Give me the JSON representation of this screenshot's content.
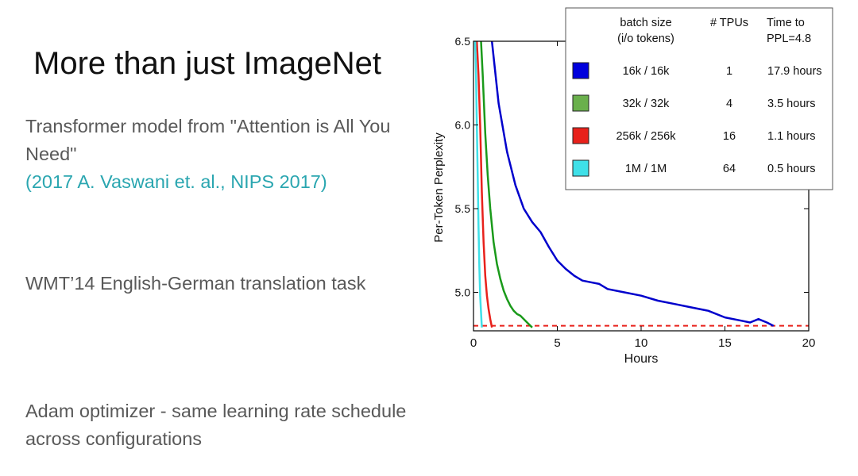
{
  "slide": {
    "title": "More than just ImageNet",
    "bullets": [
      {
        "text": "Transformer model from \"Attention is All You Need\"",
        "citation": "(2017 A. Vaswani et. al.,  NIPS 2017)"
      },
      {
        "text": "WMT’14 English-German translation task",
        "citation": ""
      },
      {
        "text": "Adam optimizer - same learning rate schedule across configurations",
        "citation": ""
      }
    ]
  },
  "chart_data": {
    "type": "line",
    "title": "",
    "xlabel": "Hours",
    "ylabel": "Per-Token Perplexity",
    "xlim": [
      0,
      20
    ],
    "ylim": [
      4.77,
      6.5
    ],
    "xticks": [
      0,
      5,
      10,
      15,
      20
    ],
    "yticks": [
      5.0,
      5.5,
      6.0,
      6.5
    ],
    "ytick_labels": [
      "5.0",
      "5.5",
      "6.0",
      "6.5"
    ],
    "grid": false,
    "legend": {
      "placement": "top-right",
      "headers": [
        "batch size\n(i/o tokens)",
        "# TPUs",
        "Time to\nPPL=4.8"
      ],
      "rows": [
        {
          "color": "#0000dd",
          "batch": "16k / 16k",
          "tpus": "1",
          "time": "17.9 hours"
        },
        {
          "color": "#6ab04c",
          "batch": "32k / 32k",
          "tpus": "4",
          "time": "3.5 hours"
        },
        {
          "color": "#e8211b",
          "batch": "256k / 256k",
          "tpus": "16",
          "time": "1.1 hours"
        },
        {
          "color": "#3fe0e8",
          "batch": "1M / 1M",
          "tpus": "64",
          "time": "0.5 hours"
        }
      ]
    },
    "target_line": {
      "y": 4.8,
      "color": "#e8211b",
      "style": "dashed"
    },
    "series": [
      {
        "color": "#0000cc",
        "x": [
          1.1,
          1.5,
          2.0,
          2.5,
          3.0,
          3.5,
          4.0,
          4.5,
          5.0,
          5.5,
          6.0,
          6.5,
          7.0,
          7.5,
          8.0,
          9.0,
          10.0,
          11.0,
          12.0,
          13.0,
          14.0,
          15.0,
          16.0,
          16.5,
          17.0,
          17.5,
          17.9
        ],
        "y": [
          6.5,
          6.13,
          5.84,
          5.64,
          5.5,
          5.42,
          5.36,
          5.27,
          5.19,
          5.14,
          5.1,
          5.07,
          5.06,
          5.05,
          5.02,
          5.0,
          4.98,
          4.95,
          4.93,
          4.91,
          4.89,
          4.85,
          4.83,
          4.82,
          4.84,
          4.82,
          4.8
        ]
      },
      {
        "color": "#1a9a1a",
        "x": [
          0.45,
          0.55,
          0.7,
          0.85,
          1.0,
          1.2,
          1.4,
          1.6,
          1.8,
          2.0,
          2.2,
          2.4,
          2.6,
          2.8,
          3.0,
          3.2,
          3.5
        ],
        "y": [
          6.5,
          6.3,
          5.95,
          5.7,
          5.5,
          5.3,
          5.17,
          5.08,
          5.01,
          4.96,
          4.92,
          4.89,
          4.87,
          4.86,
          4.84,
          4.82,
          4.79
        ]
      },
      {
        "color": "#e8211b",
        "x": [
          0.2,
          0.3,
          0.4,
          0.5,
          0.6,
          0.7,
          0.8,
          0.9,
          1.0,
          1.1
        ],
        "y": [
          6.5,
          6.3,
          6.0,
          5.6,
          5.3,
          5.1,
          4.98,
          4.9,
          4.84,
          4.79
        ]
      },
      {
        "color": "#3fe0e8",
        "x": [
          0.1,
          0.15,
          0.2,
          0.25,
          0.3,
          0.35,
          0.4,
          0.45,
          0.5
        ],
        "y": [
          6.5,
          6.3,
          6.0,
          5.7,
          5.4,
          5.15,
          4.98,
          4.88,
          4.79
        ]
      }
    ]
  }
}
